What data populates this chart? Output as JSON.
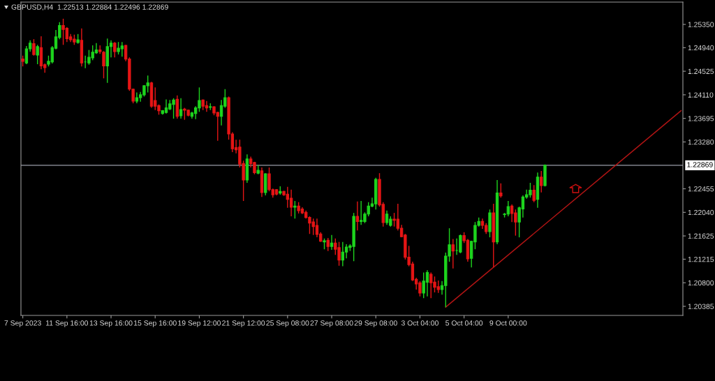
{
  "chart_data": {
    "type": "candlestick",
    "title": "GBPUSD,H4  1.22513 1.22884 1.22496 1.22869",
    "categories": [
      "7 Sep 2023",
      null,
      null,
      null,
      null,
      null,
      null,
      null,
      null,
      null,
      null,
      null,
      "11 Sep 16:00",
      null,
      null,
      null,
      null,
      null,
      null,
      null,
      null,
      null,
      null,
      null,
      "13 Sep 16:00",
      null,
      null,
      null,
      null,
      null,
      null,
      null,
      null,
      null,
      null,
      null,
      "15 Sep 16:00",
      null,
      null,
      null,
      null,
      null,
      null,
      null,
      null,
      null,
      null,
      null,
      "19 Sep 12:00",
      null,
      null,
      null,
      null,
      null,
      null,
      null,
      null,
      null,
      null,
      null,
      "21 Sep 12:00",
      null,
      null,
      null,
      null,
      null,
      null,
      null,
      null,
      null,
      null,
      null,
      "25 Sep 08:00",
      null,
      null,
      null,
      null,
      null,
      null,
      null,
      null,
      null,
      null,
      null,
      "27 Sep 08:00",
      null,
      null,
      null,
      null,
      null,
      null,
      null,
      null,
      null,
      null,
      null,
      "29 Sep 08:00",
      null,
      null,
      null,
      null,
      null,
      null,
      null,
      null,
      null,
      null,
      null,
      "3 Oct 04:00",
      null,
      null,
      null,
      null,
      null,
      null,
      null,
      null,
      null,
      null,
      null,
      "5 Oct 04:00",
      null,
      null,
      null,
      null,
      null,
      null,
      null,
      null,
      null,
      null,
      null,
      "9 Oct 00:00",
      null,
      null,
      null,
      null,
      null,
      null,
      null,
      null,
      null,
      null,
      null,
      null,
      null,
      null,
      null,
      null,
      null,
      null,
      null,
      null,
      null,
      null,
      null,
      null,
      null,
      null,
      null,
      null,
      null,
      null,
      null,
      null,
      null,
      null,
      null,
      null,
      null,
      null,
      null,
      null,
      null,
      null,
      null,
      null,
      null,
      null,
      null
    ],
    "ohlc": [
      [
        1.2474,
        1.248,
        1.2461,
        1.247
      ],
      [
        1.2467,
        1.2497,
        1.2465,
        1.2492
      ],
      [
        1.2492,
        1.2507,
        1.2487,
        1.2502
      ],
      [
        1.2501,
        1.2509,
        1.248,
        1.2482
      ],
      [
        1.2481,
        1.2499,
        1.2465,
        1.2496
      ],
      [
        1.2494,
        1.2514,
        1.2456,
        1.2462
      ],
      [
        1.2464,
        1.2466,
        1.245,
        1.2459
      ],
      [
        1.2465,
        1.248,
        1.2461,
        1.247
      ],
      [
        1.2469,
        1.2497,
        1.2466,
        1.2494
      ],
      [
        1.2493,
        1.2525,
        1.2491,
        1.2513
      ],
      [
        1.2512,
        1.2539,
        1.2509,
        1.2533
      ],
      [
        1.2533,
        1.2545,
        1.2499,
        1.2526
      ],
      [
        1.2528,
        1.253,
        1.2504,
        1.251
      ],
      [
        1.2513,
        1.2518,
        1.2504,
        1.2508
      ],
      [
        1.2509,
        1.2517,
        1.2499,
        1.2504
      ],
      [
        1.2503,
        1.2518,
        1.2501,
        1.2508
      ],
      [
        1.2507,
        1.2528,
        1.2461,
        1.2467
      ],
      [
        1.2469,
        1.248,
        1.2458,
        1.2469
      ],
      [
        1.2467,
        1.249,
        1.2464,
        1.2477
      ],
      [
        1.2476,
        1.2498,
        1.2472,
        1.2486
      ],
      [
        1.2485,
        1.2502,
        1.2483,
        1.249
      ],
      [
        1.249,
        1.2498,
        1.2483,
        1.2487
      ],
      [
        1.2486,
        1.2488,
        1.244,
        1.2462
      ],
      [
        1.2462,
        1.251,
        1.2432,
        1.2496
      ],
      [
        1.2496,
        1.2507,
        1.2477,
        1.2502
      ],
      [
        1.2502,
        1.2504,
        1.2477,
        1.2487
      ],
      [
        1.2487,
        1.2504,
        1.2482,
        1.2493
      ],
      [
        1.2492,
        1.2504,
        1.2478,
        1.2497
      ],
      [
        1.2498,
        1.2499,
        1.247,
        1.2474
      ],
      [
        1.2474,
        1.2477,
        1.2418,
        1.2421
      ],
      [
        1.2421,
        1.2422,
        1.2396,
        1.24
      ],
      [
        1.24,
        1.2415,
        1.2396,
        1.2406
      ],
      [
        1.2406,
        1.2416,
        1.2399,
        1.2411
      ],
      [
        1.2411,
        1.2428,
        1.2408,
        1.2427
      ],
      [
        1.2427,
        1.2445,
        1.2415,
        1.2432
      ],
      [
        1.2432,
        1.2434,
        1.2388,
        1.2391
      ],
      [
        1.2401,
        1.2424,
        1.2384,
        1.2391
      ],
      [
        1.2392,
        1.2394,
        1.2376,
        1.2383
      ],
      [
        1.2378,
        1.2384,
        1.2376,
        1.2383
      ],
      [
        1.238,
        1.2403,
        1.2378,
        1.2388
      ],
      [
        1.2386,
        1.2402,
        1.2384,
        1.2395
      ],
      [
        1.2394,
        1.2405,
        1.2369,
        1.2402
      ],
      [
        1.2403,
        1.241,
        1.2369,
        1.2373
      ],
      [
        1.2374,
        1.2405,
        1.2369,
        1.2385
      ],
      [
        1.2386,
        1.2388,
        1.2367,
        1.2384
      ],
      [
        1.2384,
        1.2385,
        1.2373,
        1.2375
      ],
      [
        1.2373,
        1.2381,
        1.2369,
        1.2379
      ],
      [
        1.2378,
        1.2391,
        1.2368,
        1.2388
      ],
      [
        1.2388,
        1.2424,
        1.2381,
        1.2401
      ],
      [
        1.2402,
        1.2403,
        1.2384,
        1.2391
      ],
      [
        1.2392,
        1.24,
        1.2381,
        1.2388
      ],
      [
        1.2389,
        1.2396,
        1.2384,
        1.239
      ],
      [
        1.239,
        1.2391,
        1.2375,
        1.2379
      ],
      [
        1.238,
        1.2381,
        1.233,
        1.2373
      ],
      [
        1.2373,
        1.2402,
        1.2357,
        1.2392
      ],
      [
        1.2391,
        1.2421,
        1.2388,
        1.2406
      ],
      [
        1.2406,
        1.2408,
        1.2332,
        1.2342
      ],
      [
        1.2342,
        1.2345,
        1.231,
        1.2316
      ],
      [
        1.2318,
        1.2332,
        1.2308,
        1.2314
      ],
      [
        1.2319,
        1.2332,
        1.2283,
        1.2289
      ],
      [
        1.229,
        1.2295,
        1.2224,
        1.2261
      ],
      [
        1.2261,
        1.2306,
        1.2256,
        1.2298
      ],
      [
        1.2298,
        1.2302,
        1.2283,
        1.229
      ],
      [
        1.2292,
        1.2293,
        1.2271,
        1.2274
      ],
      [
        1.2273,
        1.2287,
        1.2271,
        1.2278
      ],
      [
        1.2277,
        1.2283,
        1.2231,
        1.2239
      ],
      [
        1.2239,
        1.2273,
        1.2234,
        1.2272
      ],
      [
        1.2272,
        1.2283,
        1.2241,
        1.2244
      ],
      [
        1.2244,
        1.2246,
        1.223,
        1.2235
      ],
      [
        1.2244,
        1.2245,
        1.2234,
        1.2236
      ],
      [
        1.2238,
        1.225,
        1.2235,
        1.2241
      ],
      [
        1.2241,
        1.2242,
        1.2233,
        1.2235
      ],
      [
        1.2236,
        1.2249,
        1.2212,
        1.2227
      ],
      [
        1.2229,
        1.2244,
        1.2197,
        1.2213
      ],
      [
        1.2213,
        1.2224,
        1.2193,
        1.2215
      ],
      [
        1.2215,
        1.2222,
        1.2202,
        1.2207
      ],
      [
        1.221,
        1.2213,
        1.2201,
        1.2203
      ],
      [
        1.2204,
        1.2207,
        1.2193,
        1.2195
      ],
      [
        1.2195,
        1.2197,
        1.2166,
        1.2185
      ],
      [
        1.2187,
        1.2193,
        1.2164,
        1.2179
      ],
      [
        1.2181,
        1.2193,
        1.216,
        1.2165
      ],
      [
        1.2166,
        1.2169,
        1.2152,
        1.2153
      ],
      [
        1.2152,
        1.2158,
        1.2139,
        1.2154
      ],
      [
        1.2155,
        1.2159,
        1.2136,
        1.2144
      ],
      [
        1.2144,
        1.2164,
        1.2138,
        1.215
      ],
      [
        1.215,
        1.2158,
        1.2129,
        1.2139
      ],
      [
        1.2142,
        1.2152,
        1.211,
        1.212
      ],
      [
        1.212,
        1.2152,
        1.2109,
        1.2134
      ],
      [
        1.2134,
        1.2148,
        1.2123,
        1.2143
      ],
      [
        1.2142,
        1.2148,
        1.2136,
        1.2145
      ],
      [
        1.2144,
        1.2203,
        1.2118,
        1.2197
      ],
      [
        1.2197,
        1.2223,
        1.2172,
        1.2188
      ],
      [
        1.2188,
        1.2224,
        1.2182,
        1.219
      ],
      [
        1.2188,
        1.2204,
        1.2185,
        1.2201
      ],
      [
        1.2201,
        1.2222,
        1.2197,
        1.2215
      ],
      [
        1.2215,
        1.223,
        1.2213,
        1.2219
      ],
      [
        1.2219,
        1.2265,
        1.2209,
        1.2262
      ],
      [
        1.2262,
        1.2273,
        1.2214,
        1.2217
      ],
      [
        1.2218,
        1.2222,
        1.2179,
        1.2186
      ],
      [
        1.2186,
        1.2207,
        1.2182,
        1.2201
      ],
      [
        1.2181,
        1.2197,
        1.2179,
        1.2192
      ],
      [
        1.2192,
        1.2203,
        1.2179,
        1.219
      ],
      [
        1.2192,
        1.2219,
        1.2172,
        1.2176
      ],
      [
        1.2176,
        1.2182,
        1.216,
        1.2161
      ],
      [
        1.2164,
        1.2166,
        1.2121,
        1.2125
      ],
      [
        1.2125,
        1.2145,
        1.2109,
        1.2112
      ],
      [
        1.2113,
        1.2117,
        1.2083,
        1.2085
      ],
      [
        1.2086,
        1.2089,
        1.2068,
        1.2078
      ],
      [
        1.208,
        1.2083,
        1.2056,
        1.2062
      ],
      [
        1.2062,
        1.2098,
        1.2053,
        1.2083
      ],
      [
        1.2081,
        1.2102,
        1.2056,
        1.2098
      ],
      [
        1.2095,
        1.2098,
        1.2053,
        1.208
      ],
      [
        1.2081,
        1.2091,
        1.2063,
        1.2072
      ],
      [
        1.2073,
        1.2084,
        1.2062,
        1.2068
      ],
      [
        1.2068,
        1.2083,
        1.2059,
        1.2075
      ],
      [
        1.2075,
        1.2133,
        1.2037,
        1.2127
      ],
      [
        1.2127,
        1.2176,
        1.2117,
        1.2147
      ],
      [
        1.2147,
        1.2157,
        1.2105,
        1.2136
      ],
      [
        1.2137,
        1.2158,
        1.2129,
        1.2137
      ],
      [
        1.2134,
        1.2165,
        1.2132,
        1.2163
      ],
      [
        1.2163,
        1.2169,
        1.215,
        1.2154
      ],
      [
        1.2155,
        1.2157,
        1.2117,
        1.2122
      ],
      [
        1.2123,
        1.2154,
        1.2107,
        1.2153
      ],
      [
        1.2152,
        1.2187,
        1.2139,
        1.2181
      ],
      [
        1.2181,
        1.2195,
        1.2179,
        1.2188
      ],
      [
        1.2188,
        1.2193,
        1.2175,
        1.2181
      ],
      [
        1.2181,
        1.2185,
        1.2166,
        1.217
      ],
      [
        1.217,
        1.2209,
        1.216,
        1.2203
      ],
      [
        1.2203,
        1.2219,
        1.2107,
        1.2152
      ],
      [
        1.2152,
        1.2261,
        1.2148,
        1.2238
      ],
      [
        1.2238,
        1.2255,
        1.223,
        1.2233
      ],
      [
        1.22,
        1.2203,
        1.2195,
        1.2201
      ],
      [
        1.2201,
        1.2224,
        1.2197,
        1.2214
      ],
      [
        1.2215,
        1.2218,
        1.2187,
        1.2202
      ],
      [
        1.2203,
        1.2209,
        1.2163,
        1.2187
      ],
      [
        1.2187,
        1.2214,
        1.216,
        1.2212
      ],
      [
        1.221,
        1.2234,
        1.2195,
        1.2231
      ],
      [
        1.2231,
        1.2244,
        1.2228,
        1.2235
      ],
      [
        1.2235,
        1.2256,
        1.223,
        1.2243
      ],
      [
        1.2243,
        1.2252,
        1.2222,
        1.2225
      ],
      [
        1.2227,
        1.2274,
        1.2212,
        1.2266
      ],
      [
        1.2266,
        1.2277,
        1.2239,
        1.2251
      ],
      [
        1.22513,
        1.22884,
        1.22496,
        1.22869
      ],
      null,
      null,
      null,
      null,
      null,
      null,
      null,
      null,
      null,
      null,
      null,
      null,
      null,
      null,
      null,
      null,
      null,
      null,
      null,
      null,
      null,
      null,
      null,
      null,
      null,
      null,
      null,
      null,
      null,
      null,
      null,
      null,
      null,
      null,
      null,
      null,
      null
    ],
    "colors": [
      "#e51515",
      "#1ed41e",
      "#1ed41e",
      "#e51515",
      "#1ed41e",
      "#e51515",
      "#e51515",
      "#1ed41e",
      "#1ed41e",
      "#1ed41e",
      "#1ed41e",
      "#e51515",
      "#e51515",
      "#e51515",
      "#e51515",
      "#1ed41e",
      "#e51515",
      "#1ed41e",
      "#1ed41e",
      "#1ed41e",
      "#1ed41e",
      "#e51515",
      "#e51515",
      "#1ed41e",
      "#1ed41e",
      "#e51515",
      "#1ed41e",
      "#1ed41e",
      "#e51515",
      "#e51515",
      "#e51515",
      "#1ed41e",
      "#1ed41e",
      "#1ed41e",
      "#1ed41e",
      "#e51515",
      "#e51515",
      "#e51515",
      "#1ed41e",
      "#1ed41e",
      "#1ed41e",
      "#1ed41e",
      "#e51515",
      "#1ed41e",
      "#e51515",
      "#e51515",
      "#1ed41e",
      "#1ed41e",
      "#1ed41e",
      "#e51515",
      "#e51515",
      "#1ed41e",
      "#e51515",
      "#e51515",
      "#1ed41e",
      "#1ed41e",
      "#e51515",
      "#e51515",
      "#e51515",
      "#e51515",
      "#e51515",
      "#1ed41e",
      "#e51515",
      "#e51515",
      "#1ed41e",
      "#e51515",
      "#1ed41e",
      "#e51515",
      "#e51515",
      "#e51515",
      "#1ed41e",
      "#e51515",
      "#e51515",
      "#e51515",
      "#1ed41e",
      "#e51515",
      "#e51515",
      "#e51515",
      "#e51515",
      "#e51515",
      "#e51515",
      "#e51515",
      "#1ed41e",
      "#e51515",
      "#1ed41e",
      "#e51515",
      "#e51515",
      "#1ed41e",
      "#1ed41e",
      "#1ed41e",
      "#1ed41e",
      "#e51515",
      "#1ed41e",
      "#1ed41e",
      "#1ed41e",
      "#1ed41e",
      "#1ed41e",
      "#e51515",
      "#e51515",
      "#1ed41e",
      "#1ed41e",
      "#e51515",
      "#e51515",
      "#e51515",
      "#e51515",
      "#e51515",
      "#e51515",
      "#e51515",
      "#e51515",
      "#1ed41e",
      "#1ed41e",
      "#e51515",
      "#e51515",
      "#e51515",
      "#1ed41e",
      "#1ed41e",
      "#1ed41e",
      "#e51515",
      "#1ed41e",
      "#1ed41e",
      "#e51515",
      "#e51515",
      "#1ed41e",
      "#1ed41e",
      "#1ed41e",
      "#e51515",
      "#e51515",
      "#1ed41e",
      "#e51515",
      "#1ed41e",
      "#e51515",
      "#1ed41e",
      "#1ed41e",
      "#e51515",
      "#e51515",
      "#1ed41e",
      "#1ed41e",
      "#1ed41e",
      "#1ed41e",
      "#e51515",
      "#1ed41e",
      "#e51515",
      "#1ed41e",
      null,
      null,
      null,
      null,
      null,
      null,
      null,
      null,
      null,
      null,
      null,
      null,
      null,
      null,
      null,
      null,
      null,
      null,
      null,
      null,
      null,
      null,
      null,
      null,
      null,
      null,
      null,
      null,
      null,
      null,
      null,
      null,
      null,
      null,
      null,
      null,
      null
    ],
    "series": [
      {
        "type": "line",
        "color": "#b01414",
        "values": [
          null,
          null,
          null,
          null,
          null,
          null,
          null,
          null,
          null,
          null,
          null,
          null,
          null,
          null,
          null,
          null,
          null,
          null,
          null,
          null,
          null,
          null,
          null,
          null,
          null,
          null,
          null,
          null,
          null,
          null,
          null,
          null,
          null,
          null,
          null,
          null,
          null,
          null,
          null,
          null,
          null,
          null,
          null,
          null,
          null,
          null,
          null,
          null,
          null,
          null,
          null,
          null,
          null,
          null,
          null,
          null,
          null,
          null,
          null,
          null,
          null,
          null,
          null,
          null,
          null,
          null,
          null,
          null,
          null,
          null,
          null,
          null,
          null,
          null,
          null,
          null,
          null,
          null,
          null,
          null,
          null,
          null,
          null,
          null,
          null,
          null,
          null,
          null,
          null,
          null,
          null,
          null,
          null,
          null,
          null,
          null,
          null,
          null,
          null,
          null,
          null,
          null,
          null,
          null,
          null,
          null,
          null,
          null,
          null,
          null,
          null,
          null,
          null,
          null,
          null,
          1.2037,
          null,
          null,
          null,
          null,
          null,
          null,
          null,
          null,
          null,
          null,
          null,
          null,
          null,
          null,
          null,
          null,
          null,
          null,
          null,
          null,
          null,
          null,
          null,
          null,
          null,
          null,
          null,
          null,
          null,
          null,
          null,
          null,
          null,
          null,
          null,
          null,
          null,
          null,
          null,
          null,
          null,
          null,
          null,
          null,
          null,
          null,
          null,
          null,
          null,
          null,
          null,
          null,
          null,
          null,
          null,
          null,
          null,
          null,
          null,
          null,
          null,
          null,
          null,
          1.2383
        ]
      }
    ],
    "ref_lines": [
      {
        "axis": "y",
        "value": 1.22869,
        "label": "1.22869",
        "color": "#9a9ca8"
      }
    ],
    "ylim": [
      1.20225,
      1.25743
    ],
    "yticks": [
      {
        "value": 1.2535,
        "label": "1.25350"
      },
      {
        "value": 1.2494,
        "label": "1.24940"
      },
      {
        "value": 1.24525,
        "label": "1.24525"
      },
      {
        "value": 1.2411,
        "label": "1.24110"
      },
      {
        "value": 1.23695,
        "label": "1.23695"
      },
      {
        "value": 1.2328,
        "label": "1.23280"
      },
      {
        "value": 1.22455,
        "label": "1.22455"
      },
      {
        "value": 1.2204,
        "label": "1.22040"
      },
      {
        "value": 1.21625,
        "label": "1.21625"
      },
      {
        "value": 1.21215,
        "label": "1.21215"
      },
      {
        "value": 1.208,
        "label": "1.20800"
      },
      {
        "value": 1.20385,
        "label": "1.20385"
      }
    ]
  }
}
